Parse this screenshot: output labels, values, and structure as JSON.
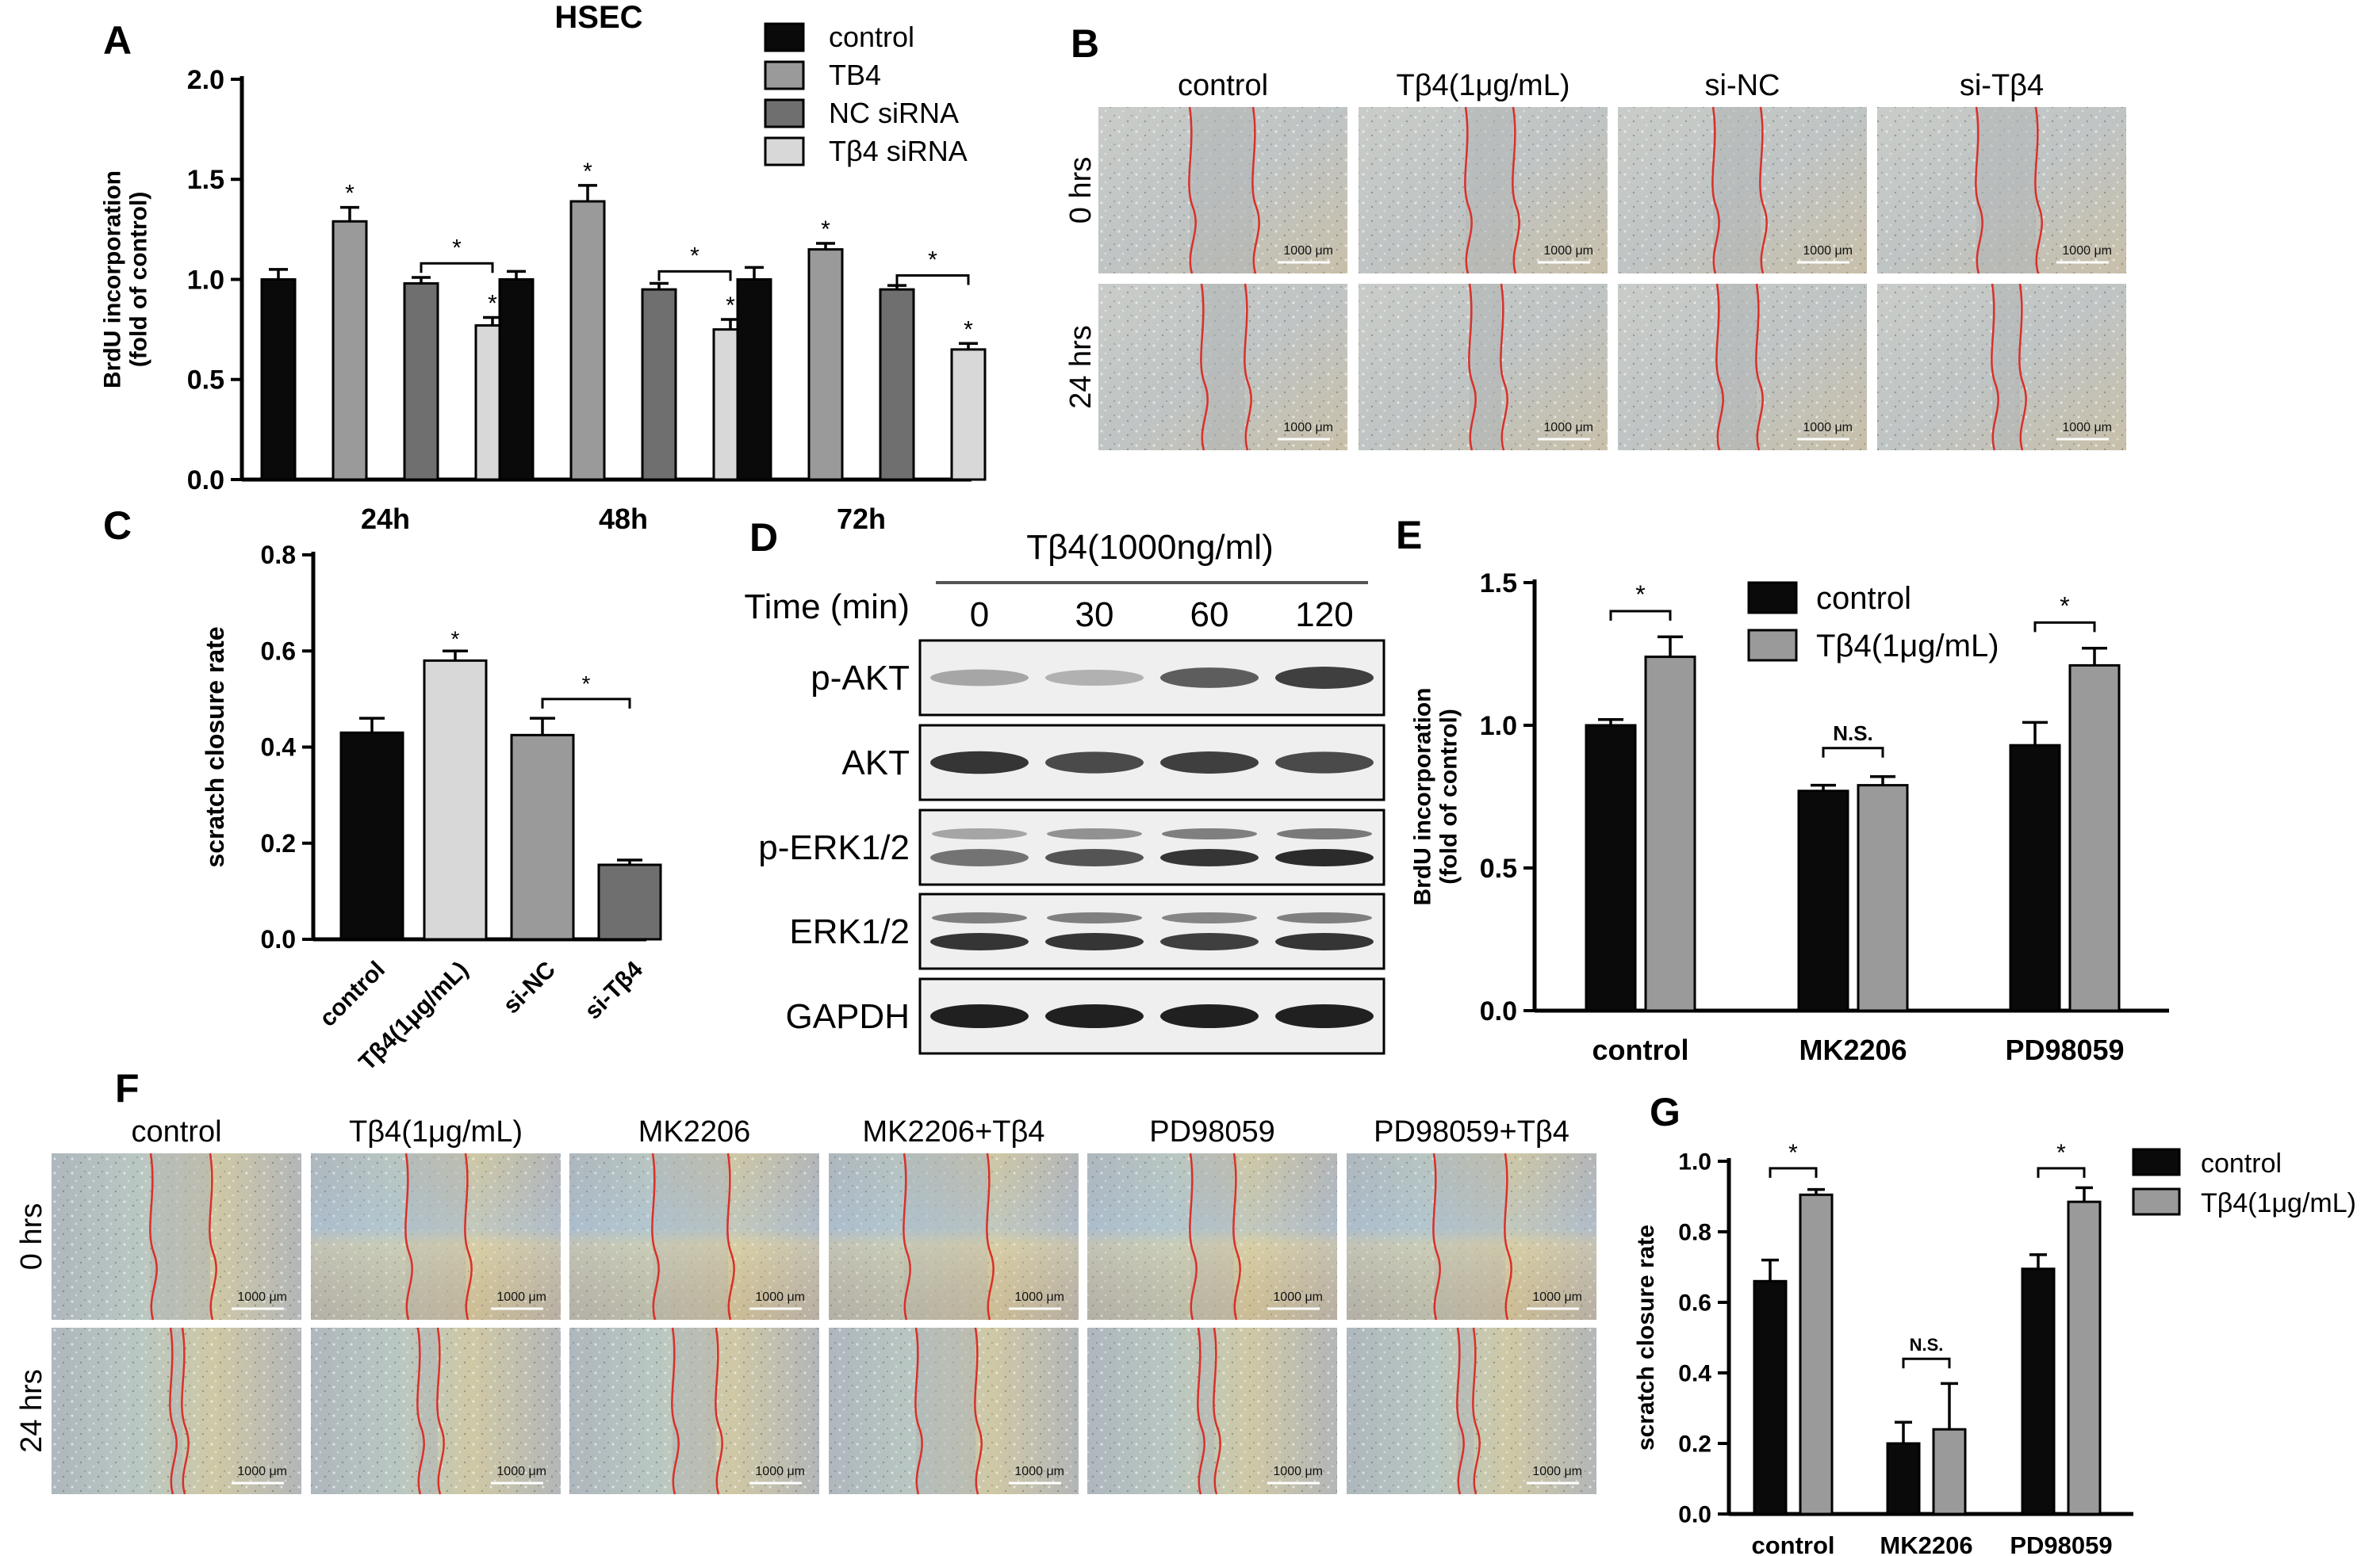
{
  "colors": {
    "black": "#0a0a0a",
    "gray_mid": "#9a9a9a",
    "gray_dark": "#6f6f6f",
    "gray_light": "#d8d8d8",
    "scratch_line": "#d9302a",
    "blot_bg": "#efefef",
    "blot_band": "#202020",
    "scale_bar": "#ffffff"
  },
  "panel_letters": {
    "a": "A",
    "b": "B",
    "c": "C",
    "d": "D",
    "e": "E",
    "f": "F",
    "g": "G"
  },
  "chart_data": [
    {
      "id": "A",
      "type": "bar",
      "title": "HSEC",
      "ylabel": "BrdU incorporation\n(fold of control)",
      "categories": [
        "24h",
        "48h",
        "72h"
      ],
      "ylim": [
        0,
        2.0
      ],
      "yticks": [
        0.0,
        0.5,
        1.0,
        1.5,
        2.0
      ],
      "ytick_labels": [
        "0.0",
        "0.5",
        "1.0",
        "1.5",
        "2.0"
      ],
      "series": [
        {
          "name": "control",
          "color": "#0a0a0a",
          "values": [
            1.0,
            1.0,
            1.0
          ],
          "errors": [
            0.05,
            0.04,
            0.06
          ]
        },
        {
          "name": "TB4",
          "color": "#9a9a9a",
          "values": [
            1.29,
            1.39,
            1.15
          ],
          "errors": [
            0.07,
            0.08,
            0.03
          ]
        },
        {
          "name": "NC siRNA",
          "color": "#6f6f6f",
          "values": [
            0.98,
            0.95,
            0.95
          ],
          "errors": [
            0.03,
            0.03,
            0.02
          ]
        },
        {
          "name": "Tβ4 siRNA",
          "color": "#d8d8d8",
          "values": [
            0.77,
            0.75,
            0.65
          ],
          "errors": [
            0.04,
            0.05,
            0.03
          ]
        }
      ],
      "stars": [
        {
          "cat": 0,
          "series": 1,
          "text": "*"
        },
        {
          "cat": 0,
          "series": 3,
          "text": "*"
        },
        {
          "cat": 1,
          "series": 1,
          "text": "*"
        },
        {
          "cat": 1,
          "series": 3,
          "text": "*"
        },
        {
          "cat": 2,
          "series": 1,
          "text": "*"
        },
        {
          "cat": 2,
          "series": 3,
          "text": "*"
        }
      ],
      "brackets": [
        {
          "cat": 0,
          "from": 2,
          "to": 3,
          "y": 1.08,
          "text": "*"
        },
        {
          "cat": 1,
          "from": 2,
          "to": 3,
          "y": 1.04,
          "text": "*"
        },
        {
          "cat": 2,
          "from": 2,
          "to": 3,
          "y": 1.02,
          "text": "*"
        }
      ]
    },
    {
      "id": "C",
      "type": "bar",
      "ylabel": "scratch closure rate",
      "categories": [
        "control",
        "Tβ4(1μg/mL)",
        "si-NC",
        "si-Tβ4"
      ],
      "colors": [
        "#0a0a0a",
        "#d8d8d8",
        "#9a9a9a",
        "#6f6f6f"
      ],
      "values": [
        0.43,
        0.58,
        0.425,
        0.155
      ],
      "errors": [
        0.03,
        0.02,
        0.035,
        0.01
      ],
      "ylim": [
        0,
        0.8
      ],
      "yticks": [
        0.0,
        0.2,
        0.4,
        0.6,
        0.8
      ],
      "ytick_labels": [
        "0.0",
        "0.2",
        "0.4",
        "0.6",
        "0.8"
      ],
      "stars": [
        {
          "index": 1,
          "text": "*"
        }
      ],
      "brackets": [
        {
          "from": 2,
          "to": 3,
          "y": 0.5,
          "text": "*"
        }
      ]
    },
    {
      "id": "E",
      "type": "bar",
      "ylabel": "BrdU incorporation\n(fold of control)",
      "categories": [
        "control",
        "MK2206",
        "PD98059"
      ],
      "ylim": [
        0,
        1.5
      ],
      "yticks": [
        0.0,
        0.5,
        1.0,
        1.5
      ],
      "ytick_labels": [
        "0.0",
        "0.5",
        "1.0",
        "1.5"
      ],
      "series": [
        {
          "name": "control",
          "color": "#0a0a0a",
          "values": [
            1.0,
            0.77,
            0.93
          ],
          "errors": [
            0.02,
            0.02,
            0.08
          ]
        },
        {
          "name": "Tβ4(1μg/mL)",
          "color": "#9a9a9a",
          "values": [
            1.24,
            0.79,
            1.21
          ],
          "errors": [
            0.07,
            0.03,
            0.06
          ]
        }
      ],
      "brackets": [
        {
          "cat": 0,
          "y": 1.4,
          "text": "*"
        },
        {
          "cat": 1,
          "y": 0.92,
          "text": "N.S."
        },
        {
          "cat": 2,
          "y": 1.36,
          "text": "*"
        }
      ]
    },
    {
      "id": "G",
      "type": "bar",
      "ylabel": "scratch closure rate",
      "categories": [
        "control",
        "MK2206",
        "PD98059"
      ],
      "ylim": [
        0,
        1.0
      ],
      "yticks": [
        0.0,
        0.2,
        0.4,
        0.6,
        0.8,
        1.0
      ],
      "ytick_labels": [
        "0.0",
        "0.2",
        "0.4",
        "0.6",
        "0.8",
        "1.0"
      ],
      "series": [
        {
          "name": "control",
          "color": "#0a0a0a",
          "values": [
            0.66,
            0.2,
            0.695
          ],
          "errors": [
            0.06,
            0.06,
            0.04
          ]
        },
        {
          "name": "Tβ4(1μg/mL)",
          "color": "#9a9a9a",
          "values": [
            0.905,
            0.24,
            0.885
          ],
          "errors": [
            0.015,
            0.13,
            0.04
          ]
        }
      ],
      "brackets": [
        {
          "cat": 0,
          "y": 0.98,
          "text": "*"
        },
        {
          "cat": 1,
          "y": 0.44,
          "text": "N.S."
        },
        {
          "cat": 2,
          "y": 0.98,
          "text": "*"
        }
      ]
    }
  ],
  "panel_b": {
    "columns": [
      "control",
      "Tβ4(1μg/mL)",
      "si-NC",
      "si-Tβ4"
    ],
    "rows": [
      "0 hrs",
      "24 hrs"
    ],
    "scale_label": "1000 μm"
  },
  "panel_d": {
    "treatment": "Tβ4(1000ng/ml)",
    "time_label": "Time (min)",
    "times": [
      "0",
      "30",
      "60",
      "120"
    ],
    "blots": [
      {
        "label": "p-AKT",
        "intensity": [
          0.35,
          0.3,
          0.7,
          0.85
        ],
        "double": false
      },
      {
        "label": "AKT",
        "intensity": [
          0.9,
          0.8,
          0.85,
          0.8
        ],
        "double": false
      },
      {
        "label": "p-ERK1/2",
        "intensity": [
          0.6,
          0.75,
          0.9,
          0.95
        ],
        "double": true
      },
      {
        "label": "ERK1/2",
        "intensity": [
          0.9,
          0.9,
          0.85,
          0.9
        ],
        "double": true
      },
      {
        "label": "GAPDH",
        "intensity": [
          1.0,
          1.0,
          1.0,
          1.0
        ],
        "double": false
      }
    ]
  },
  "panel_f": {
    "columns": [
      "control",
      "Tβ4(1μg/mL)",
      "MK2206",
      "MK2206+Tβ4",
      "PD98059",
      "PD98059+Tβ4"
    ],
    "rows": [
      "0 hrs",
      "24 hrs"
    ],
    "scale_label": "1000 μm"
  }
}
